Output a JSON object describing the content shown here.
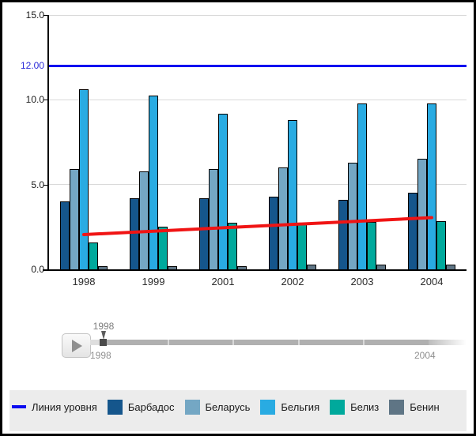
{
  "chart_data": {
    "type": "bar",
    "title": "",
    "categories": [
      "1998",
      "1999",
      "2001",
      "2002",
      "2003",
      "2004"
    ],
    "series": [
      {
        "name": "Барбадос",
        "color": "#15568C",
        "values": [
          4.0,
          4.2,
          4.2,
          4.3,
          4.1,
          4.5
        ]
      },
      {
        "name": "Беларусь",
        "color": "#74A7C4",
        "values": [
          5.9,
          5.8,
          5.9,
          6.0,
          6.3,
          6.5
        ]
      },
      {
        "name": "Бельгия",
        "color": "#29ABE2",
        "values": [
          10.6,
          10.25,
          9.2,
          8.8,
          9.8,
          9.8
        ]
      },
      {
        "name": "Белиз",
        "color": "#00A99C",
        "values": [
          1.6,
          2.5,
          2.75,
          2.75,
          2.8,
          2.85
        ]
      },
      {
        "name": "Бенин",
        "color": "#5F7585",
        "values": [
          0.2,
          0.2,
          0.2,
          0.3,
          0.3,
          0.3
        ]
      }
    ],
    "level_line": {
      "label": "Линия уровня",
      "value": 12,
      "display": "12.00",
      "color": "#0A0AF0",
      "label_color": "#2A2AD8"
    },
    "trend_line": {
      "color": "#F01414",
      "start_value": 2.05,
      "end_value": 3.05
    },
    "y_ticks": [
      0,
      5,
      10,
      15
    ],
    "y_tick_labels": [
      "0.0",
      "5.0",
      "10.0",
      "15.0"
    ],
    "ylim": [
      0,
      15
    ],
    "grid": true,
    "legend_position": "bottom"
  },
  "slider": {
    "tooltip": "1998",
    "start_label": "1998",
    "end_label": "2004"
  }
}
